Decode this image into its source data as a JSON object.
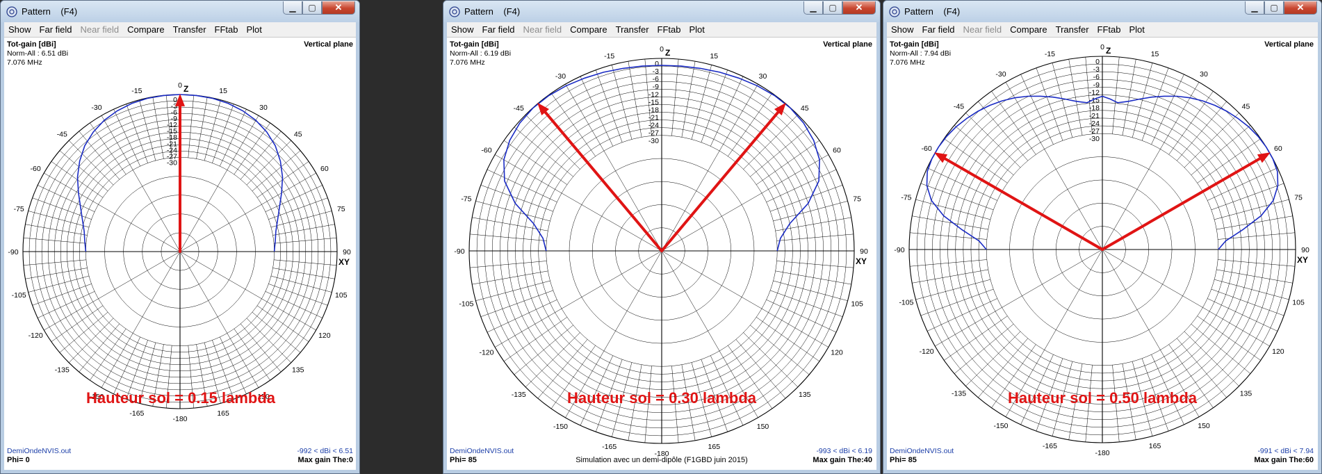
{
  "windows": [
    {
      "id": "w1",
      "title": "Pattern    (F4)",
      "menu": [
        {
          "label": "Show",
          "enabled": true
        },
        {
          "label": "Far field",
          "enabled": true
        },
        {
          "label": "Near field",
          "enabled": false
        },
        {
          "label": "Compare",
          "enabled": true
        },
        {
          "label": "Transfer",
          "enabled": true
        },
        {
          "label": "FFtab",
          "enabled": true
        },
        {
          "label": "Plot",
          "enabled": true
        }
      ],
      "plot": {
        "quantity": "Tot-gain [dBi]",
        "norm": "Norm-All : 6.51 dBi",
        "freq": "7.076 MHz",
        "plane": "Vertical plane",
        "file": "DemiOndeNVIS.out",
        "gain_readout": "-992 < dBi < 6.51",
        "phi": "Phi= 0",
        "max_gain": "Max gain The:0",
        "caption": "Hauteur sol = 0.15 lambda",
        "footer": "",
        "arrows_deg": [
          0
        ],
        "pattern_db": [
          [
            -90,
            -30
          ],
          [
            -84,
            -29.3
          ],
          [
            -78,
            -28.2
          ],
          [
            -72,
            -26
          ],
          [
            -66,
            -23
          ],
          [
            -60,
            -19
          ],
          [
            -54,
            -14.5
          ],
          [
            -48,
            -10.5
          ],
          [
            -42,
            -7
          ],
          [
            -36,
            -4.5
          ],
          [
            -30,
            -2.6
          ],
          [
            -24,
            -1.4
          ],
          [
            -18,
            -0.6
          ],
          [
            -12,
            -0.2
          ],
          [
            -6,
            -0.05
          ],
          [
            0,
            0
          ],
          [
            6,
            -0.05
          ],
          [
            12,
            -0.2
          ],
          [
            18,
            -0.6
          ],
          [
            24,
            -1.4
          ],
          [
            30,
            -2.6
          ],
          [
            36,
            -4.5
          ],
          [
            42,
            -7
          ],
          [
            48,
            -10.5
          ],
          [
            54,
            -14.5
          ],
          [
            60,
            -19
          ],
          [
            66,
            -23
          ],
          [
            72,
            -26
          ],
          [
            78,
            -28.2
          ],
          [
            84,
            -29.3
          ],
          [
            90,
            -30
          ]
        ]
      }
    },
    {
      "id": "w2",
      "title": "Pattern    (F4)",
      "menu": [
        {
          "label": "Show",
          "enabled": true
        },
        {
          "label": "Far field",
          "enabled": true
        },
        {
          "label": "Near field",
          "enabled": false
        },
        {
          "label": "Compare",
          "enabled": true
        },
        {
          "label": "Transfer",
          "enabled": true
        },
        {
          "label": "FFtab",
          "enabled": true
        },
        {
          "label": "Plot",
          "enabled": true
        }
      ],
      "plot": {
        "quantity": "Tot-gain [dBi]",
        "norm": "Norm-All : 6.19 dBi",
        "freq": "7.076 MHz",
        "plane": "Vertical plane",
        "file": "DemiOndeNVIS.out",
        "gain_readout": "-993 < dBi < 6.19",
        "phi": "Phi= 85",
        "max_gain": "Max gain The:40",
        "caption": "Hauteur sol = 0.30 lambda",
        "footer": "Simulation avec un demi-dipôle (F1GBD juin 2015)",
        "arrows_deg": [
          -40,
          40
        ],
        "pattern_db": [
          [
            -90,
            -30
          ],
          [
            -84,
            -28.5
          ],
          [
            -78,
            -24
          ],
          [
            -72,
            -15
          ],
          [
            -66,
            -8
          ],
          [
            -60,
            -4
          ],
          [
            -54,
            -1.8
          ],
          [
            -48,
            -0.6
          ],
          [
            -42,
            -0.1
          ],
          [
            -36,
            -0.2
          ],
          [
            -30,
            -0.7
          ],
          [
            -24,
            -1.3
          ],
          [
            -18,
            -1.8
          ],
          [
            -12,
            -2.3
          ],
          [
            -6,
            -2.6
          ],
          [
            0,
            -2.7
          ],
          [
            6,
            -2.6
          ],
          [
            12,
            -2.3
          ],
          [
            18,
            -1.8
          ],
          [
            24,
            -1.3
          ],
          [
            30,
            -0.7
          ],
          [
            36,
            -0.2
          ],
          [
            42,
            -0.1
          ],
          [
            48,
            -0.6
          ],
          [
            54,
            -1.8
          ],
          [
            60,
            -4
          ],
          [
            66,
            -8
          ],
          [
            72,
            -15
          ],
          [
            78,
            -24
          ],
          [
            84,
            -28.5
          ],
          [
            90,
            -30
          ]
        ]
      }
    },
    {
      "id": "w3",
      "title": "Pattern    (F4)",
      "menu": [
        {
          "label": "Show",
          "enabled": true
        },
        {
          "label": "Far field",
          "enabled": true
        },
        {
          "label": "Near field",
          "enabled": false
        },
        {
          "label": "Compare",
          "enabled": true
        },
        {
          "label": "Transfer",
          "enabled": true
        },
        {
          "label": "FFtab",
          "enabled": true
        },
        {
          "label": "Plot",
          "enabled": true
        }
      ],
      "plot": {
        "quantity": "Tot-gain [dBi]",
        "norm": "Norm-All : 7.94 dBi",
        "freq": "7.076 MHz",
        "plane": "Vertical plane",
        "file": "DemiOndeNVIS.out",
        "gain_readout": "-991 < dBi < 7.94",
        "phi": "Phi= 85",
        "max_gain": "Max gain The:60",
        "caption": "Hauteur sol = 0.50 lambda",
        "footer": "",
        "arrows_deg": [
          -60,
          60
        ],
        "pattern_db": [
          [
            -90,
            -30
          ],
          [
            -86,
            -27
          ],
          [
            -82,
            -20
          ],
          [
            -78,
            -12
          ],
          [
            -74,
            -6
          ],
          [
            -70,
            -2.5
          ],
          [
            -66,
            -0.6
          ],
          [
            -62,
            -0.05
          ],
          [
            -58,
            0
          ],
          [
            -54,
            -0.3
          ],
          [
            -50,
            -0.9
          ],
          [
            -46,
            -1.8
          ],
          [
            -42,
            -2.8
          ],
          [
            -38,
            -4
          ],
          [
            -34,
            -5.4
          ],
          [
            -30,
            -7
          ],
          [
            -26,
            -8.8
          ],
          [
            -22,
            -10.8
          ],
          [
            -18,
            -12.8
          ],
          [
            -14,
            -14.8
          ],
          [
            -10,
            -16.6
          ],
          [
            -6,
            -17.7
          ],
          [
            -3,
            -16.5
          ],
          [
            0,
            -15.5
          ],
          [
            3,
            -16.5
          ],
          [
            6,
            -17.7
          ],
          [
            10,
            -16.6
          ],
          [
            14,
            -14.8
          ],
          [
            18,
            -12.8
          ],
          [
            22,
            -10.8
          ],
          [
            26,
            -8.8
          ],
          [
            30,
            -7
          ],
          [
            34,
            -5.4
          ],
          [
            38,
            -4
          ],
          [
            42,
            -2.8
          ],
          [
            46,
            -1.8
          ],
          [
            50,
            -0.9
          ],
          [
            54,
            -0.3
          ],
          [
            58,
            0
          ],
          [
            62,
            -0.05
          ],
          [
            66,
            -0.6
          ],
          [
            70,
            -2.5
          ],
          [
            74,
            -6
          ],
          [
            78,
            -12
          ],
          [
            82,
            -20
          ],
          [
            86,
            -27
          ],
          [
            90,
            -30
          ]
        ]
      }
    }
  ],
  "scale": {
    "zenith": "Z",
    "horizon": "XY",
    "angle_labels": [
      "0",
      "15",
      "30",
      "45",
      "60",
      "75",
      "90",
      "105",
      "120",
      "135",
      "150",
      "165",
      "-180",
      "-165",
      "-150",
      "-135",
      "-120",
      "-105",
      "-90",
      "-75",
      "-60",
      "-45",
      "-30",
      "-15"
    ],
    "angle_values": [
      0,
      15,
      30,
      45,
      60,
      75,
      90,
      105,
      120,
      135,
      150,
      165,
      180,
      -165,
      -150,
      -135,
      -120,
      -105,
      -90,
      -75,
      -60,
      -45,
      -30,
      -15
    ],
    "db_labels": [
      "0",
      "-3",
      "-6",
      "-9",
      "-12",
      "-15",
      "-18",
      "-21",
      "-24",
      "-27",
      "-30"
    ],
    "db_values": [
      0,
      -3,
      -6,
      -9,
      -12,
      -15,
      -18,
      -21,
      -24,
      -27,
      -30
    ]
  },
  "colors": {
    "pattern": "#1a2bc4",
    "arrow": "#e01414",
    "caption": "#e01414",
    "grid": "#000000",
    "info_blue": "#1b3ea8"
  }
}
